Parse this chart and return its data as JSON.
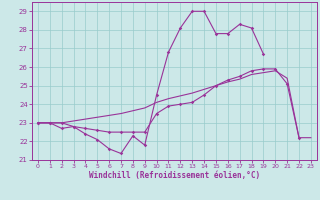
{
  "xlabel": "Windchill (Refroidissement éolien,°C)",
  "xlim": [
    -0.5,
    23.5
  ],
  "ylim": [
    21,
    29.5
  ],
  "yticks": [
    21,
    22,
    23,
    24,
    25,
    26,
    27,
    28,
    29
  ],
  "xticks": [
    0,
    1,
    2,
    3,
    4,
    5,
    6,
    7,
    8,
    9,
    10,
    11,
    12,
    13,
    14,
    15,
    16,
    17,
    18,
    19,
    20,
    21,
    22,
    23
  ],
  "bg_color": "#cce8e8",
  "line_color": "#993399",
  "line1_x": [
    0,
    1,
    2,
    3,
    4,
    5,
    6,
    7,
    8,
    9,
    10,
    11,
    12,
    13,
    14,
    15,
    16,
    17,
    18,
    19
  ],
  "line1_y": [
    23.0,
    23.0,
    22.7,
    22.8,
    22.4,
    22.1,
    21.6,
    21.35,
    22.3,
    21.8,
    24.5,
    26.8,
    28.1,
    29.0,
    29.0,
    27.8,
    27.8,
    28.3,
    28.1,
    26.7
  ],
  "line2_x": [
    0,
    1,
    2,
    3,
    4,
    5,
    6,
    7,
    8,
    9,
    10,
    11,
    12,
    13,
    14,
    15,
    16,
    17,
    18,
    19,
    20,
    21,
    22
  ],
  "line2_y": [
    23.0,
    23.0,
    23.0,
    22.8,
    22.7,
    22.6,
    22.5,
    22.5,
    22.5,
    22.5,
    23.5,
    23.9,
    24.0,
    24.1,
    24.5,
    25.0,
    25.3,
    25.5,
    25.8,
    25.9,
    25.9,
    25.1,
    22.2
  ],
  "line3_x": [
    0,
    1,
    2,
    3,
    4,
    5,
    6,
    7,
    8,
    9,
    10,
    11,
    12,
    13,
    14,
    15,
    16,
    17,
    18,
    19,
    20,
    21,
    22,
    23
  ],
  "line3_y": [
    23.0,
    23.0,
    23.0,
    23.1,
    23.2,
    23.3,
    23.4,
    23.5,
    23.65,
    23.8,
    24.1,
    24.3,
    24.45,
    24.6,
    24.8,
    25.0,
    25.2,
    25.35,
    25.6,
    25.7,
    25.8,
    25.4,
    22.2,
    22.2
  ]
}
